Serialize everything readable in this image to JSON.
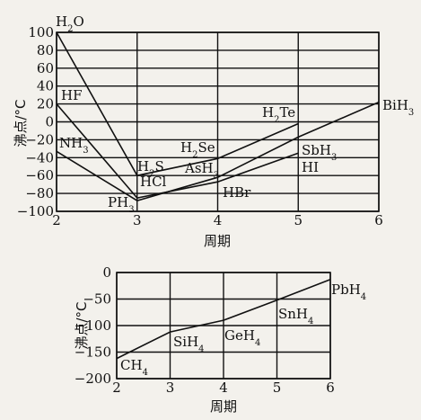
{
  "chart_data": [
    {
      "type": "line",
      "xlabel": "周期",
      "ylabel": "沸点/°C",
      "xlim": [
        2,
        6
      ],
      "ylim": [
        -100,
        100
      ],
      "xticks": [
        "2",
        "3",
        "4",
        "5",
        "6"
      ],
      "yticks": [
        "100",
        "80",
        "60",
        "40",
        "20",
        "0",
        "−20",
        "−40",
        "−60",
        "−80",
        "−100"
      ],
      "grid": true,
      "series": [
        {
          "points": [
            {
              "x": 2,
              "y": 100,
              "label": "H2O"
            },
            {
              "x": 3,
              "y": -60,
              "label": "H2S"
            },
            {
              "x": 4,
              "y": -41,
              "label": "H2Se"
            },
            {
              "x": 5,
              "y": -2,
              "label": "H2Te"
            }
          ]
        },
        {
          "points": [
            {
              "x": 2,
              "y": 20,
              "label": "HF"
            },
            {
              "x": 3,
              "y": -85,
              "label": "HCl"
            },
            {
              "x": 4,
              "y": -67,
              "label": "HBr"
            },
            {
              "x": 5,
              "y": -35,
              "label": "HI"
            }
          ]
        },
        {
          "points": [
            {
              "x": 2,
              "y": -33,
              "label": "NH3"
            },
            {
              "x": 3,
              "y": -88,
              "label": "PH3"
            },
            {
              "x": 4,
              "y": -62,
              "label": "AsH3"
            },
            {
              "x": 5,
              "y": -17,
              "label": "SbH3"
            },
            {
              "x": 6,
              "y": 22,
              "label": "BiH3"
            }
          ]
        }
      ]
    },
    {
      "type": "line",
      "xlabel": "周期",
      "ylabel": "沸点/°C",
      "xlim": [
        2,
        6
      ],
      "ylim": [
        -200,
        0
      ],
      "xticks": [
        "2",
        "3",
        "4",
        "5",
        "6"
      ],
      "yticks": [
        "0",
        "−50",
        "−100",
        "−150",
        "−200"
      ],
      "grid": true,
      "series": [
        {
          "points": [
            {
              "x": 2,
              "y": -162,
              "label": "CH4"
            },
            {
              "x": 3,
              "y": -112,
              "label": "SiH4"
            },
            {
              "x": 4,
              "y": -90,
              "label": "GeH4"
            },
            {
              "x": 5,
              "y": -52,
              "label": "SnH4"
            },
            {
              "x": 6,
              "y": -13,
              "label": "PbH4"
            }
          ]
        }
      ]
    }
  ]
}
